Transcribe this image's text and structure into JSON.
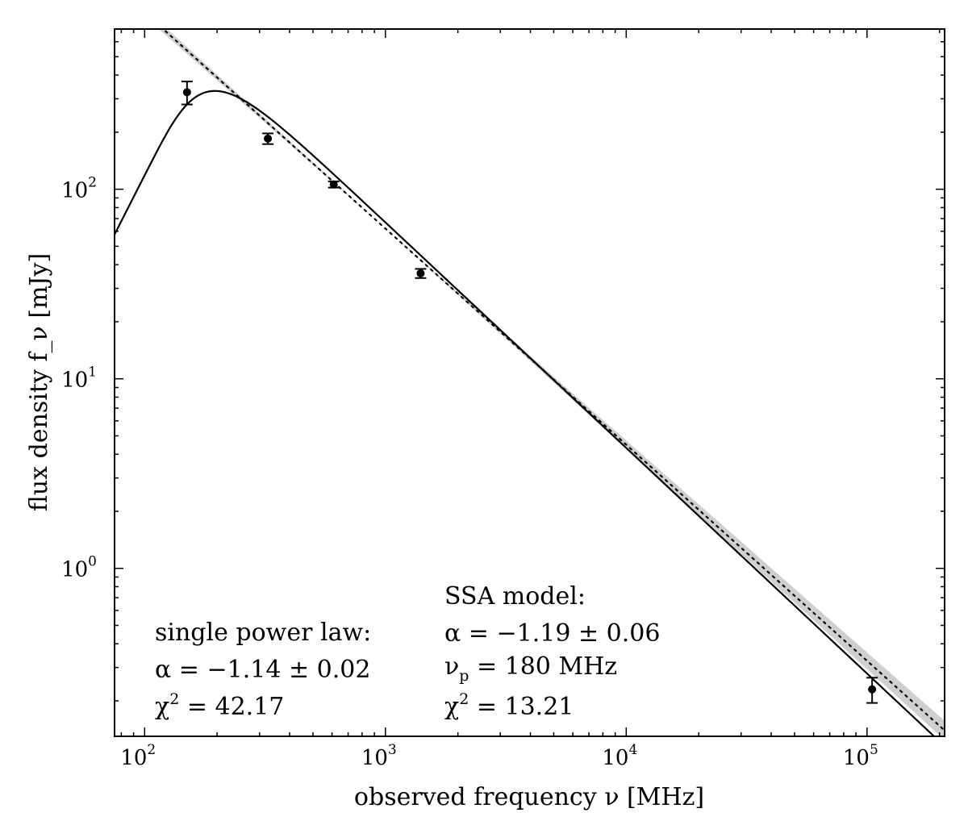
{
  "chart_data": {
    "type": "scatter",
    "xlabel": "observed frequency ν [MHz]",
    "ylabel": "flux density f_ν [mJy]",
    "x_scale": "log",
    "y_scale": "log",
    "xlim": [
      75,
      210000
    ],
    "ylim": [
      0.13,
      700
    ],
    "grid": false,
    "x_ticks": [
      {
        "base": "10",
        "exp": "2",
        "value": 100
      },
      {
        "base": "10",
        "exp": "3",
        "value": 1000
      },
      {
        "base": "10",
        "exp": "4",
        "value": 10000
      },
      {
        "base": "10",
        "exp": "5",
        "value": 100000
      }
    ],
    "y_ticks": [
      {
        "base": "10",
        "exp": "0",
        "value": 1
      },
      {
        "base": "10",
        "exp": "1",
        "value": 10
      },
      {
        "base": "10",
        "exp": "2",
        "value": 100
      }
    ],
    "points": [
      {
        "x": 150,
        "y": 325,
        "err": 45
      },
      {
        "x": 325,
        "y": 185,
        "err": 12
      },
      {
        "x": 610,
        "y": 106,
        "err": 4
      },
      {
        "x": 1400,
        "y": 36,
        "err": 2
      },
      {
        "x": 105000,
        "y": 0.23,
        "err": 0.035
      }
    ],
    "models": [
      {
        "style": "dotted",
        "kind": "power-law",
        "norm_x": 1000,
        "norm_y": 62,
        "alpha": -1.14
      },
      {
        "style": "solid",
        "kind": "ssa",
        "alpha": -1.19,
        "nu_p": 180,
        "peak_y": 330
      }
    ],
    "annotations": {
      "power_law": {
        "heading": "single power law:",
        "alpha_label": "α = −1.14 ± 0.02",
        "chi_base": "χ",
        "chi_exp": "2",
        "chi_value": " = 42.17"
      },
      "ssa": {
        "heading": "SSA model:",
        "alpha_label": "α = −1.19 ± 0.06",
        "nu_base": "ν",
        "nu_sub": "p",
        "nu_value": " = 180  MHz",
        "chi_base": "χ",
        "chi_exp": "2",
        "chi_value": " = 13.21"
      }
    }
  }
}
